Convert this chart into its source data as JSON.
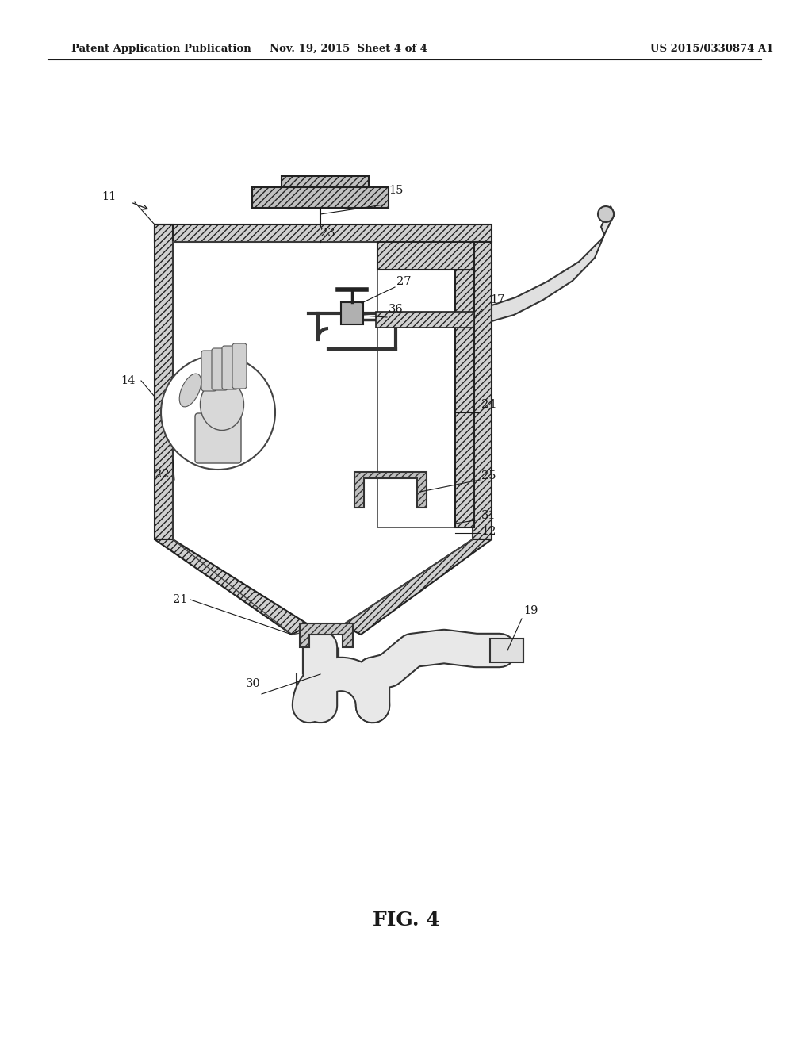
{
  "title": "FIG. 4",
  "header_left": "Patent Application Publication",
  "header_mid": "Nov. 19, 2015  Sheet 4 of 4",
  "header_right": "US 2015/0330874 A1",
  "bg": "#ffffff",
  "lc": "#1a1a1a",
  "wall_fc": "#d0d0d0",
  "wall_ec": "#222222",
  "glove_fc": "#cccccc",
  "glove_ec": "#555555"
}
